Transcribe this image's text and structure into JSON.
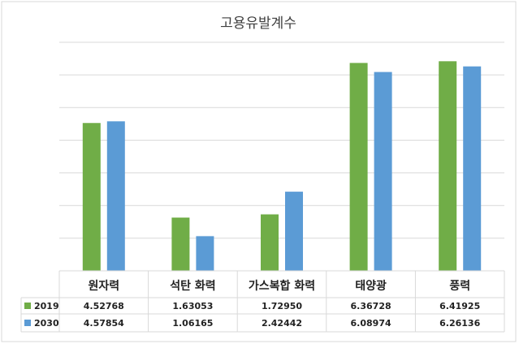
{
  "chart_data": {
    "type": "bar",
    "title": "고용유발계수",
    "categories": [
      "원자력",
      "석탄 화력",
      "가스복합 화력",
      "태양광",
      "풍력"
    ],
    "series": [
      {
        "name": "2019",
        "color": "#70ad47",
        "values": [
          4.52768,
          1.63053,
          1.7295,
          6.36728,
          6.41925
        ],
        "labels": [
          "4.52768",
          "1.63053",
          "1.72950",
          "6.36728",
          "6.41925"
        ]
      },
      {
        "name": "2030",
        "color": "#5b9bd5",
        "values": [
          4.57854,
          1.06165,
          2.42442,
          6.08974,
          6.26136
        ],
        "labels": [
          "4.57854",
          "1.06165",
          "2.42442",
          "6.08974",
          "6.26136"
        ]
      }
    ],
    "ylim": [
      0,
      7
    ],
    "grid": true,
    "legend": "data-table"
  }
}
